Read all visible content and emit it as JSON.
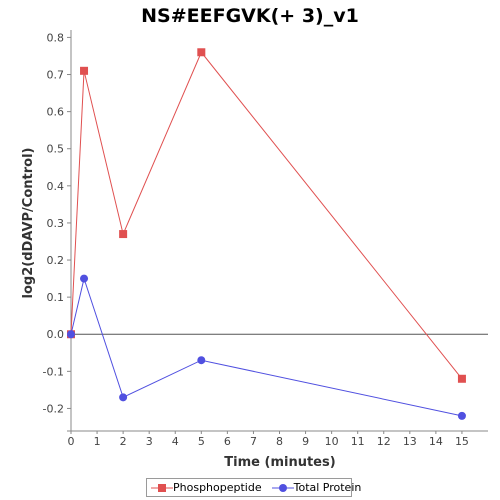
{
  "chart_data": {
    "type": "line",
    "title": "NS#EEFGVK(+ 3)_v1",
    "xlabel": "Time (minutes)",
    "ylabel": "log2(dDAVP/Control)",
    "xlim": [
      0,
      16
    ],
    "ylim": [
      -0.25,
      0.82
    ],
    "xticks": [
      0,
      1,
      2,
      3,
      4,
      5,
      6,
      7,
      8,
      9,
      10,
      11,
      12,
      13,
      14,
      15
    ],
    "yticks": [
      -0.2,
      -0.1,
      0.0,
      0.1,
      0.2,
      0.3,
      0.4,
      0.5,
      0.6,
      0.7,
      0.8
    ],
    "ytick_labels": [
      "-0.2",
      "-0.1",
      "0.0",
      "0.1",
      "0.2",
      "0.3",
      "0.4",
      "0.5",
      "0.6",
      "0.7",
      "0.8"
    ],
    "zero_line": true,
    "grid": false,
    "legend_position": "bottom-center",
    "series": [
      {
        "name": "Phosphopeptide",
        "color": "#e05050",
        "marker": "square",
        "x": [
          0,
          0.5,
          2,
          5,
          15
        ],
        "y": [
          0.0,
          0.71,
          0.27,
          0.76,
          -0.12
        ]
      },
      {
        "name": "Total Protein",
        "color": "#5050e0",
        "marker": "circle",
        "x": [
          0,
          0.5,
          2,
          5,
          15
        ],
        "y": [
          0.0,
          0.15,
          -0.17,
          -0.07,
          -0.22
        ]
      }
    ]
  }
}
